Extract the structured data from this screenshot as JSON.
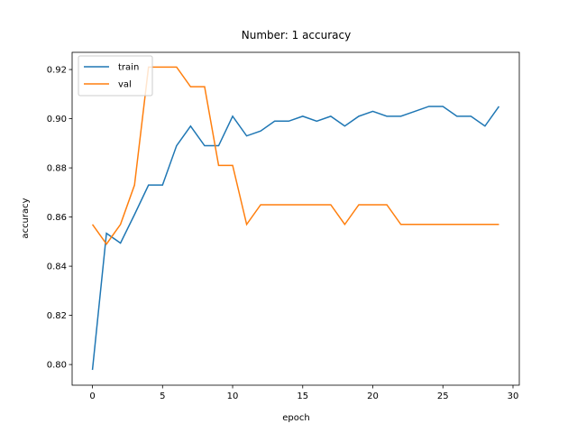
{
  "chart_data": {
    "type": "line",
    "title": "Number: 1 accuracy",
    "x_label": "epoch",
    "y_label": "accuracy",
    "x": [
      0,
      1,
      2,
      3,
      4,
      5,
      6,
      7,
      8,
      9,
      10,
      11,
      12,
      13,
      14,
      15,
      16,
      17,
      18,
      19,
      20,
      21,
      22,
      23,
      24,
      25,
      26,
      27,
      28,
      29
    ],
    "series": [
      {
        "name": "train",
        "color": "#1f77b4",
        "values": [
          0.7978,
          0.8534,
          0.8494,
          0.861,
          0.873,
          0.873,
          0.889,
          0.897,
          0.889,
          0.889,
          0.901,
          0.893,
          0.895,
          0.899,
          0.899,
          0.901,
          0.899,
          0.901,
          0.897,
          0.901,
          0.903,
          0.901,
          0.901,
          0.903,
          0.905,
          0.905,
          0.901,
          0.901,
          0.897,
          0.905
        ]
      },
      {
        "name": "val",
        "color": "#ff7f0e",
        "values": [
          0.857,
          0.849,
          0.857,
          0.873,
          0.921,
          0.921,
          0.921,
          0.913,
          0.913,
          0.881,
          0.881,
          0.857,
          0.865,
          0.865,
          0.865,
          0.865,
          0.865,
          0.865,
          0.857,
          0.865,
          0.865,
          0.865,
          0.857,
          0.857,
          0.857,
          0.857,
          0.857,
          0.857,
          0.857,
          0.857
        ]
      }
    ],
    "xlim": [
      -1.45,
      30.45
    ],
    "ylim": [
      0.7916,
      0.927
    ],
    "xticks": [
      0,
      5,
      10,
      15,
      20,
      25,
      30
    ],
    "yticks": [
      {
        "value": 0.8,
        "label": "0.80"
      },
      0.82,
      0.84,
      0.86,
      0.88,
      {
        "value": 0.9,
        "label": "0.90"
      },
      0.92
    ],
    "legend": "upper left",
    "grid": false
  }
}
